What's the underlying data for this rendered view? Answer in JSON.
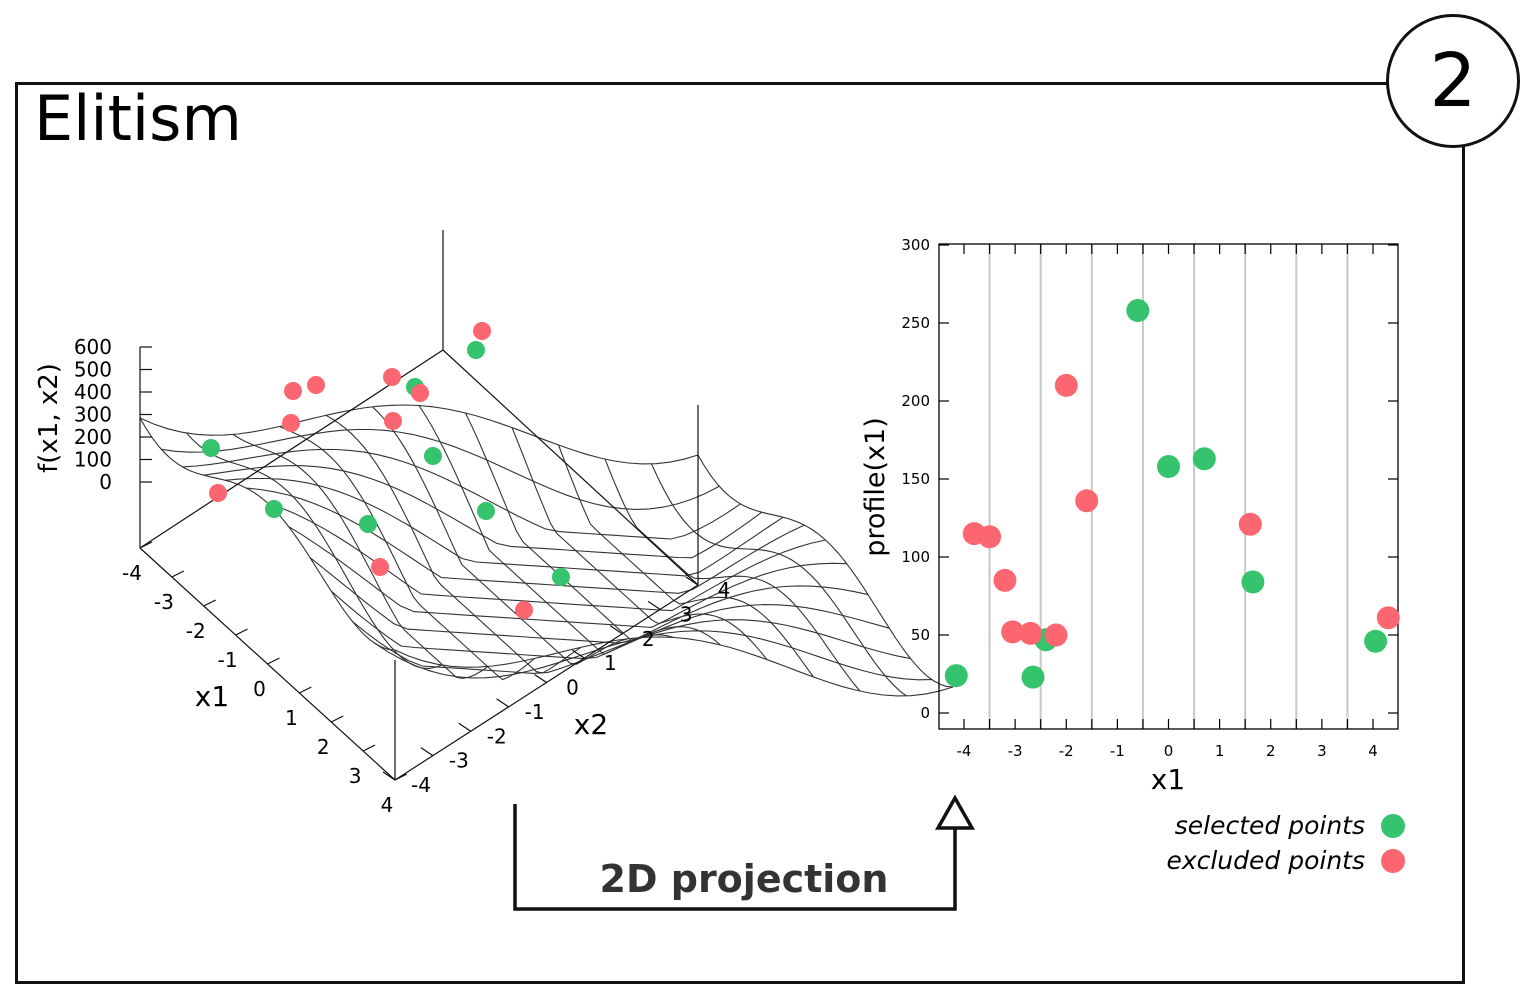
{
  "title": "Elitism",
  "step_number": "2",
  "projection_label": "2D projection",
  "colors": {
    "selected": "#35c46d",
    "excluded": "#fc6670",
    "grid": "#c8c8c8",
    "mesh": "#333333"
  },
  "surface_plot": {
    "zlabel": "f(x1, x2)",
    "xlabel": "x1",
    "ylabel": "x2",
    "z_ticks": [
      "600",
      "500",
      "400",
      "300",
      "200",
      "100",
      "0"
    ],
    "x1_ticks": [
      "-4",
      "-3",
      "-2",
      "-1",
      "0",
      "1",
      "2",
      "3",
      "4"
    ],
    "x2_ticks": [
      "-4",
      "-3",
      "-2",
      "-1",
      "0",
      "1",
      "2",
      "3",
      "4"
    ]
  },
  "chart_data": {
    "type": "scatter",
    "xlabel": "x1",
    "ylabel": "profile(x1)",
    "xlim": [
      -4.5,
      4.5
    ],
    "ylim": [
      0,
      300
    ],
    "x_ticks": [
      "-4",
      "-3",
      "-2",
      "-1",
      "0",
      "1",
      "2",
      "3",
      "4"
    ],
    "y_ticks": [
      "0",
      "50",
      "100",
      "150",
      "200",
      "250",
      "300"
    ],
    "vertical_gridlines": [
      -3.5,
      -2.5,
      -1.5,
      -0.5,
      0.5,
      1.5,
      2.5,
      3.5
    ],
    "series": [
      {
        "name": "selected points",
        "color": "#35c46d",
        "points": [
          [
            -4.15,
            24
          ],
          [
            -2.65,
            23
          ],
          [
            -2.4,
            47
          ],
          [
            -0.6,
            258
          ],
          [
            0.0,
            158
          ],
          [
            0.7,
            163
          ],
          [
            1.65,
            84
          ],
          [
            4.05,
            46
          ]
        ]
      },
      {
        "name": "excluded points",
        "color": "#fc6670",
        "points": [
          [
            -3.8,
            115
          ],
          [
            -3.5,
            113
          ],
          [
            -3.2,
            85
          ],
          [
            -3.05,
            52
          ],
          [
            -2.7,
            51
          ],
          [
            -2.2,
            50
          ],
          [
            -2.0,
            210
          ],
          [
            -1.6,
            136
          ],
          [
            1.6,
            121
          ],
          [
            4.3,
            61
          ]
        ]
      }
    ],
    "legend": {
      "placement": "bottom-right",
      "entries": [
        "selected points",
        "excluded points"
      ]
    }
  }
}
